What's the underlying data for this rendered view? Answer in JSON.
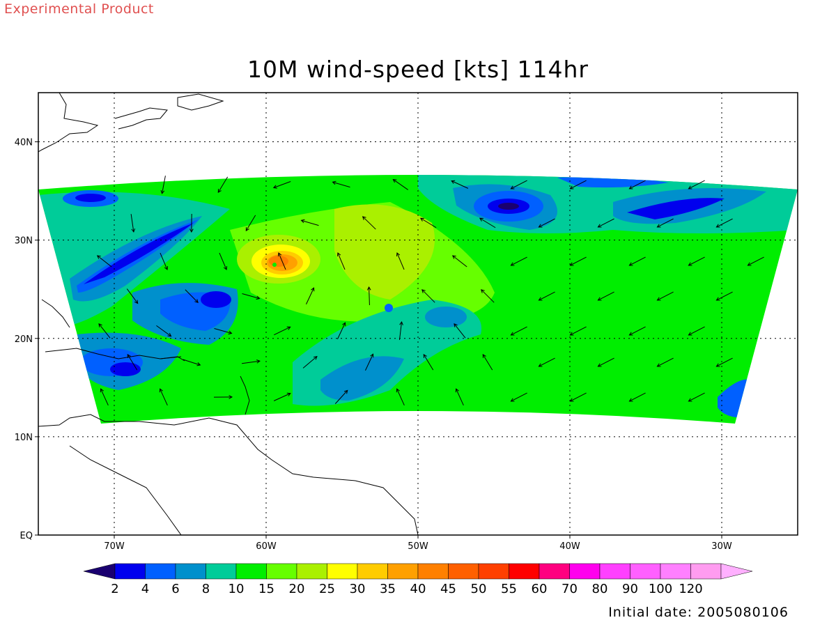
{
  "header": {
    "product_label": "Experimental Product",
    "title": "10M wind-speed [kts] 114hr",
    "initial_date": "Initial date: 2005080106"
  },
  "map": {
    "lon_range": [
      -75,
      -25
    ],
    "lat_range": [
      0,
      45
    ],
    "lon_ticks": [
      {
        "value": -70,
        "label": "70W"
      },
      {
        "value": -60,
        "label": "60W"
      },
      {
        "value": -50,
        "label": "50W"
      },
      {
        "value": -40,
        "label": "40W"
      },
      {
        "value": -30,
        "label": "30W"
      }
    ],
    "lat_ticks": [
      {
        "value": 0,
        "label": "EQ"
      },
      {
        "value": 10,
        "label": "10N"
      },
      {
        "value": 20,
        "label": "20N"
      },
      {
        "value": 30,
        "label": "30N"
      },
      {
        "value": 40,
        "label": "40N"
      }
    ],
    "grid": true,
    "domain_color": "#00ee00",
    "hurricane_center": {
      "lon": -59.5,
      "lat": 27.8,
      "max_kts": 45
    }
  },
  "colorbar": {
    "colors": [
      "#1a0070",
      "#0000ee",
      "#0060ff",
      "#0090cc",
      "#00cc99",
      "#00ee00",
      "#66ff00",
      "#aaf000",
      "#ffff00",
      "#ffcc00",
      "#ffa000",
      "#ff8000",
      "#ff6000",
      "#ff4000",
      "#ff0000",
      "#ff0080",
      "#ff00ee",
      "#ff40ff",
      "#ff60ff",
      "#ff80ff",
      "#ff9cf0",
      "#ffb0ff"
    ],
    "labels": [
      "2",
      "4",
      "6",
      "8",
      "10",
      "15",
      "20",
      "25",
      "30",
      "35",
      "40",
      "45",
      "50",
      "55",
      "60",
      "70",
      "80",
      "90",
      "100",
      "120"
    ]
  }
}
